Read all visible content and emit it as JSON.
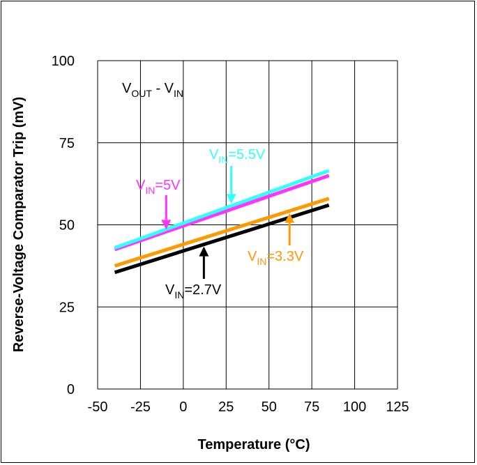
{
  "chart_data": {
    "type": "line",
    "xlabel": "Temperature (°C)",
    "ylabel": "Reverse-Voltage Comparator Trip (mV)",
    "xlim": [
      -50,
      125
    ],
    "ylim": [
      0,
      100
    ],
    "x_ticks": [
      -50,
      -25,
      0,
      25,
      50,
      75,
      100,
      125
    ],
    "y_ticks": [
      0,
      25,
      50,
      75,
      100
    ],
    "grid": true,
    "annotation": {
      "main": "V",
      "sub1": "OUT",
      "mid": " - V",
      "sub2": "IN"
    },
    "series": [
      {
        "name": "VIN=5.5V",
        "label_main": "V",
        "label_sub": "IN",
        "label_rest": "=5.5V",
        "color": "#33ffff",
        "x": [
          -40,
          85
        ],
        "y": [
          43,
          66.5
        ]
      },
      {
        "name": "VIN=5V",
        "label_main": "V",
        "label_sub": "IN",
        "label_rest": "=5V",
        "color": "#ff33ff",
        "x": [
          -40,
          85
        ],
        "y": [
          42.5,
          65
        ]
      },
      {
        "name": "VIN=3.3V",
        "label_main": "V",
        "label_sub": "IN",
        "label_rest": "=3.3V",
        "color": "#ff9900",
        "x": [
          -40,
          85
        ],
        "y": [
          37.5,
          58
        ]
      },
      {
        "name": "VIN=2.7V",
        "label_main": "V",
        "label_sub": "IN",
        "label_rest": "=2.7V",
        "color": "#000000",
        "x": [
          -40,
          85
        ],
        "y": [
          35.5,
          56
        ]
      }
    ]
  }
}
